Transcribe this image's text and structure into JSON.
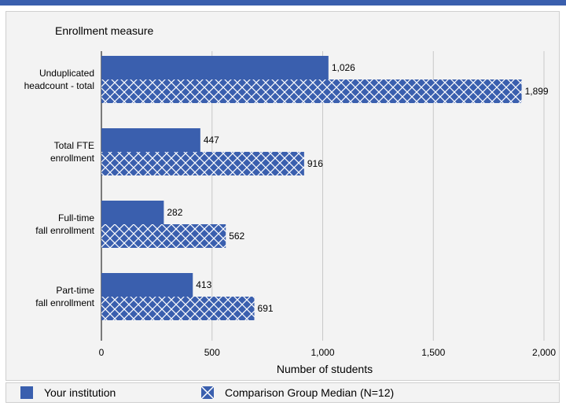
{
  "chart_data": {
    "type": "bar",
    "orientation": "horizontal",
    "y_axis_title": "Enrollment measure",
    "xlabel": "Number of students",
    "xlim": [
      0,
      2000
    ],
    "xticks": [
      0,
      500,
      1000,
      1500,
      2000
    ],
    "xtick_labels": [
      "0",
      "500",
      "1,000",
      "1,500",
      "2,000"
    ],
    "grid": "vertical",
    "categories": [
      [
        "Unduplicated",
        "headcount - total"
      ],
      [
        "Total FTE",
        "enrollment"
      ],
      [
        "Full-time",
        "fall enrollment"
      ],
      [
        "Part-time",
        "fall enrollment"
      ]
    ],
    "series": [
      {
        "name": "Your institution",
        "values": [
          1026,
          447,
          282,
          413
        ],
        "labels": [
          "1,026",
          "447",
          "282",
          "413"
        ],
        "color": "#3a5fae",
        "pattern": "solid"
      },
      {
        "name": "Comparison Group Median (N=12)",
        "values": [
          1899,
          916,
          562,
          691
        ],
        "labels": [
          "1,899",
          "916",
          "562",
          "691"
        ],
        "color": "#3a5fae",
        "pattern": "crosshatch"
      }
    ],
    "legend_placement": "bottom"
  }
}
